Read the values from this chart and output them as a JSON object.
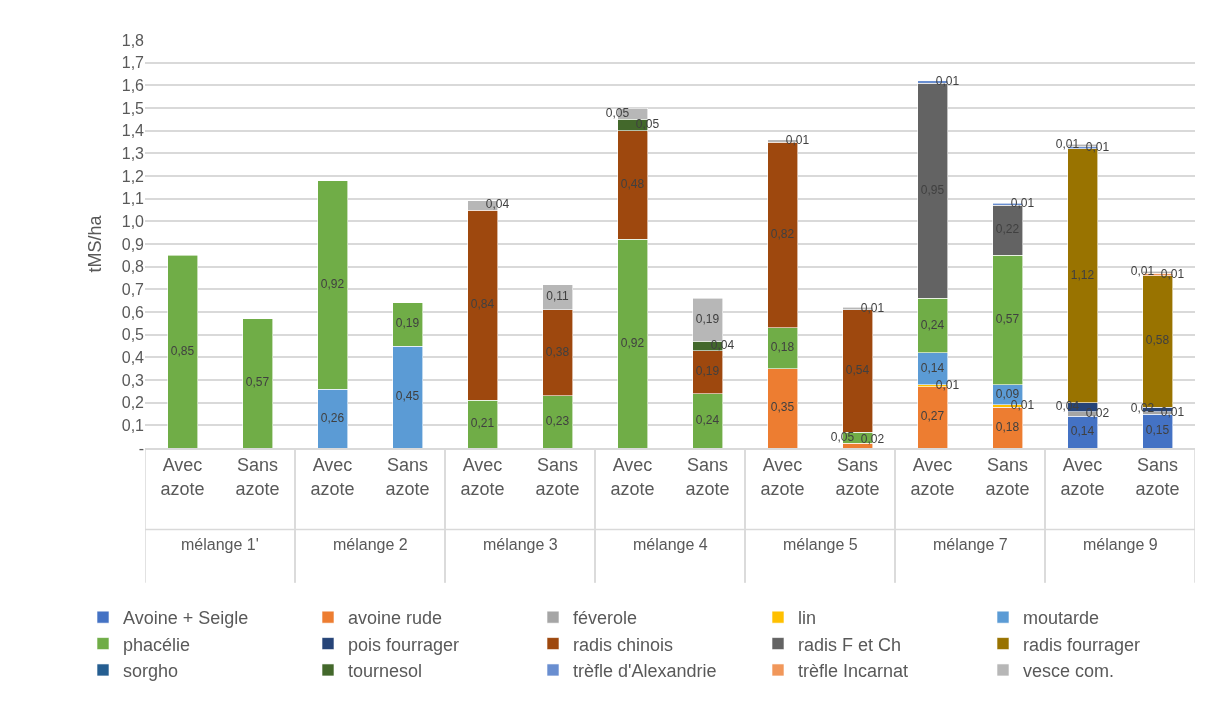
{
  "chart_data": {
    "type": "bar",
    "stacked": true,
    "ylabel": "tMS/ha",
    "categories": [
      "Avec azote",
      "Sans azote",
      "Avec azote",
      "Sans azote",
      "Avec azote",
      "Sans azote",
      "Avec azote",
      "Sans azote",
      "Avec azote",
      "Sans azote",
      "Avec azote",
      "Sans azote",
      "Avec azote",
      "Sans azote"
    ],
    "annotations": [
      "mélange 1'",
      "mélange 2",
      "mélange 3",
      "mélange 4",
      "mélange 5",
      "mélange 7",
      "mélange 9"
    ],
    "ylim": [
      0,
      1.8
    ],
    "yticks": [
      {
        "value": 0,
        "label": "-"
      },
      {
        "value": 0.1,
        "label": "0,1"
      },
      {
        "value": 0.2,
        "label": "0,2"
      },
      {
        "value": 0.3,
        "label": "0,3"
      },
      {
        "value": 0.4,
        "label": "0,4"
      },
      {
        "value": 0.5,
        "label": "0,5"
      },
      {
        "value": 0.6,
        "label": "0,6"
      },
      {
        "value": 0.7,
        "label": "0,7"
      },
      {
        "value": 0.8,
        "label": "0,8"
      },
      {
        "value": 0.9,
        "label": "0,9"
      },
      {
        "value": 1.0,
        "label": "1,0"
      },
      {
        "value": 1.1,
        "label": "1,1"
      },
      {
        "value": 1.2,
        "label": "1,2"
      },
      {
        "value": 1.3,
        "label": "1,3"
      },
      {
        "value": 1.4,
        "label": "1,4"
      },
      {
        "value": 1.5,
        "label": "1,5"
      },
      {
        "value": 1.6,
        "label": "1,6"
      },
      {
        "value": 1.7,
        "label": "1,7"
      },
      {
        "value": 1.8,
        "label": "1,8"
      }
    ],
    "grid": "y",
    "legend": "bottom",
    "series": [
      {
        "name": "Avoine + Seigle",
        "color": "#4472c4",
        "values": [
          null,
          null,
          null,
          null,
          null,
          null,
          null,
          null,
          null,
          null,
          null,
          null,
          0.14,
          0.15
        ],
        "value_labels": [
          null,
          null,
          null,
          null,
          null,
          null,
          null,
          null,
          null,
          null,
          null,
          null,
          "0,14",
          "0,15"
        ]
      },
      {
        "name": "avoine rude",
        "color": "#ed7d31",
        "values": [
          null,
          null,
          null,
          null,
          null,
          null,
          null,
          null,
          0.35,
          0.02,
          0.27,
          0.18,
          null,
          null
        ],
        "value_labels": [
          null,
          null,
          null,
          null,
          null,
          null,
          null,
          null,
          "0,35",
          "0,02",
          "0,27",
          "0,18",
          null,
          null
        ]
      },
      {
        "name": "féverole",
        "color": "#a5a5a5",
        "values": [
          null,
          null,
          null,
          null,
          null,
          null,
          null,
          null,
          null,
          null,
          null,
          null,
          0.02,
          0.01
        ],
        "value_labels": [
          null,
          null,
          null,
          null,
          null,
          null,
          null,
          null,
          null,
          null,
          null,
          null,
          "0,02",
          "0,01"
        ]
      },
      {
        "name": "lin",
        "color": "#ffc000",
        "values": [
          null,
          null,
          null,
          null,
          null,
          null,
          null,
          null,
          null,
          null,
          0.01,
          0.01,
          null,
          null
        ],
        "value_labels": [
          null,
          null,
          null,
          null,
          null,
          null,
          null,
          null,
          null,
          null,
          "0,01",
          "0,01",
          null,
          null
        ]
      },
      {
        "name": "moutarde",
        "color": "#5b9bd5",
        "values": [
          null,
          null,
          0.26,
          0.45,
          null,
          null,
          null,
          null,
          null,
          null,
          0.14,
          0.09,
          null,
          null
        ],
        "value_labels": [
          null,
          null,
          "0,26",
          "0,45",
          null,
          null,
          null,
          null,
          null,
          null,
          "0,14",
          "0,09",
          null,
          null
        ]
      },
      {
        "name": "phacélie",
        "color": "#70ad47",
        "values": [
          0.85,
          0.57,
          0.92,
          0.19,
          0.21,
          0.23,
          0.92,
          0.24,
          0.18,
          0.05,
          0.24,
          0.57,
          null,
          null
        ],
        "value_labels": [
          "0,85",
          "0,57",
          "0,92",
          "0,19",
          "0,21",
          "0,23",
          "0,92",
          "0,24",
          "0,18",
          "0,05",
          "0,24",
          "0,57",
          null,
          null
        ]
      },
      {
        "name": "pois fourrager",
        "color": "#264478",
        "values": [
          null,
          null,
          null,
          null,
          null,
          null,
          null,
          null,
          null,
          null,
          null,
          null,
          0.04,
          0.02
        ],
        "value_labels": [
          null,
          null,
          null,
          null,
          null,
          null,
          null,
          null,
          null,
          null,
          null,
          null,
          "0,04",
          "0,02"
        ]
      },
      {
        "name": "radis chinois",
        "color": "#9e480e",
        "values": [
          null,
          null,
          null,
          null,
          0.84,
          0.38,
          0.48,
          0.19,
          0.82,
          0.54,
          null,
          null,
          null,
          null
        ],
        "value_labels": [
          null,
          null,
          null,
          null,
          "0,84",
          "0,38",
          "0,48",
          "0,19",
          "0,82",
          "0,54",
          null,
          null,
          null,
          null
        ]
      },
      {
        "name": "radis F et Ch",
        "color": "#636363",
        "values": [
          null,
          null,
          null,
          null,
          null,
          null,
          null,
          null,
          null,
          null,
          0.95,
          0.22,
          null,
          null
        ],
        "value_labels": [
          null,
          null,
          null,
          null,
          null,
          null,
          null,
          null,
          null,
          null,
          "0,95",
          "0,22",
          null,
          null
        ]
      },
      {
        "name": "radis fourrager",
        "color": "#997300",
        "values": [
          null,
          null,
          null,
          null,
          null,
          null,
          null,
          null,
          null,
          null,
          null,
          null,
          1.12,
          0.58
        ],
        "value_labels": [
          null,
          null,
          null,
          null,
          null,
          null,
          null,
          null,
          null,
          null,
          null,
          null,
          "1,12",
          "0,58"
        ]
      },
      {
        "name": "sorgho",
        "color": "#255e91",
        "values": [
          null,
          null,
          null,
          null,
          null,
          null,
          null,
          null,
          null,
          null,
          null,
          null,
          null,
          null
        ]
      },
      {
        "name": "tournesol",
        "color": "#43682b",
        "values": [
          null,
          null,
          null,
          null,
          null,
          null,
          0.05,
          0.04,
          null,
          null,
          null,
          null,
          null,
          null
        ],
        "value_labels": [
          null,
          null,
          null,
          null,
          null,
          null,
          "0,05",
          "0,04",
          null,
          null,
          null,
          null,
          null,
          null
        ]
      },
      {
        "name": "trèfle d'Alexandrie",
        "color": "#698ed0",
        "values": [
          null,
          null,
          null,
          null,
          null,
          null,
          null,
          null,
          null,
          null,
          0.01,
          0.01,
          0.01,
          null
        ],
        "value_labels": [
          null,
          null,
          null,
          null,
          null,
          null,
          null,
          null,
          null,
          null,
          "0,01",
          "0,01",
          "0,01",
          null
        ]
      },
      {
        "name": "trèfle Incarnat",
        "color": "#f1975a",
        "values": [
          null,
          null,
          null,
          null,
          null,
          null,
          null,
          null,
          null,
          null,
          null,
          null,
          null,
          0.01
        ],
        "value_labels": [
          null,
          null,
          null,
          null,
          null,
          null,
          null,
          null,
          null,
          null,
          null,
          null,
          null,
          "0,01"
        ]
      },
      {
        "name": "vesce com.",
        "color": "#b7b7b7",
        "values": [
          null,
          null,
          null,
          null,
          0.04,
          0.11,
          0.05,
          0.19,
          0.01,
          0.01,
          null,
          null,
          0.01,
          0.01
        ],
        "value_labels": [
          null,
          null,
          null,
          null,
          "0,04",
          "0,11",
          "0,05",
          "0,19",
          "0,01",
          "0,01",
          null,
          null,
          "0,01",
          "0,01"
        ]
      }
    ]
  }
}
